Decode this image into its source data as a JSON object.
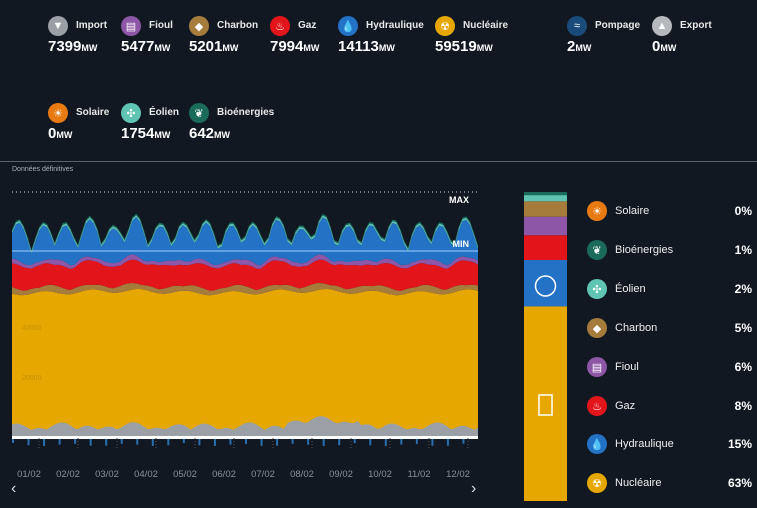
{
  "stats_row1": [
    {
      "key": "import",
      "label": "Import",
      "value": "7399",
      "unit": "MW",
      "color": "#9ba0a6",
      "icon": "import-icon",
      "glyph": "▼"
    },
    {
      "key": "fioul",
      "label": "Fioul",
      "value": "5477",
      "unit": "MW",
      "color": "#8e56a7",
      "icon": "fioul-icon",
      "glyph": "▤"
    },
    {
      "key": "charbon",
      "label": "Charbon",
      "value": "5201",
      "unit": "MW",
      "color": "#a67c3d",
      "icon": "charbon-icon",
      "glyph": "◆"
    },
    {
      "key": "gaz",
      "label": "Gaz",
      "value": "7994",
      "unit": "MW",
      "color": "#e2151b",
      "icon": "gaz-icon",
      "glyph": "♨"
    },
    {
      "key": "hydraulique",
      "label": "Hydraulique",
      "value": "14113",
      "unit": "MW",
      "color": "#2372c6",
      "icon": "hydraulique-icon",
      "glyph": "💧"
    },
    {
      "key": "nucleaire",
      "label": "Nucléaire",
      "value": "59519",
      "unit": "MW",
      "color": "#e6a800",
      "icon": "nucleaire-icon",
      "glyph": "☢"
    },
    {
      "key": "pompage",
      "label": "Pompage",
      "value": "2",
      "unit": "MW",
      "color": "#1a4b7a",
      "icon": "pompage-icon",
      "glyph": "≈"
    },
    {
      "key": "export",
      "label": "Export",
      "value": "0",
      "unit": "MW",
      "color": "#b5b9be",
      "icon": "export-icon",
      "glyph": "▲"
    }
  ],
  "stats_row2": [
    {
      "key": "solaire",
      "label": "Solaire",
      "value": "0",
      "unit": "MW",
      "color": "#e87a12",
      "icon": "solaire-icon",
      "glyph": "☀"
    },
    {
      "key": "eolien",
      "label": "Éolien",
      "value": "1754",
      "unit": "MW",
      "color": "#5fc5b2",
      "icon": "eolien-icon",
      "glyph": "✣"
    },
    {
      "key": "bioenergies",
      "label": "Bioénergies",
      "value": "642",
      "unit": "MW",
      "color": "#1b6b5a",
      "icon": "bioenergies-icon",
      "glyph": "❦"
    }
  ],
  "status_label": "Données définitives",
  "chart_data": {
    "type": "area",
    "x_tick_labels": [
      "01/02",
      "02/02",
      "03/02",
      "04/02",
      "05/02",
      "06/02",
      "07/02",
      "08/02",
      "09/02",
      "10/02",
      "11/02",
      "12/02"
    ],
    "y_tick_labels": [
      "60000",
      "40000",
      "20000"
    ],
    "markers": {
      "max_label": "MAX",
      "min_label": "MIN"
    },
    "series": [
      {
        "name": "Nucléaire",
        "color": "#e6a800"
      },
      {
        "name": "Charbon",
        "color": "#a67c3d"
      },
      {
        "name": "Gaz",
        "color": "#e2151b"
      },
      {
        "name": "Fioul",
        "color": "#8e56a7"
      },
      {
        "name": "Hydraulique",
        "color": "#2372c6"
      },
      {
        "name": "Éolien",
        "color": "#5fc5b2"
      },
      {
        "name": "Bioénergies",
        "color": "#1b6b5a"
      },
      {
        "name": "Import",
        "color": "#9ba0a6"
      }
    ],
    "mix_breakdown": [
      {
        "name": "Solaire",
        "percent": 0,
        "color": "#e87a12",
        "icon": "solaire-icon",
        "glyph": "☀"
      },
      {
        "name": "Bioénergies",
        "percent": 1,
        "color": "#1b6b5a",
        "icon": "bioenergies-icon",
        "glyph": "❦"
      },
      {
        "name": "Éolien",
        "percent": 2,
        "color": "#5fc5b2",
        "icon": "eolien-icon",
        "glyph": "✣"
      },
      {
        "name": "Charbon",
        "percent": 5,
        "color": "#a67c3d",
        "icon": "charbon-icon",
        "glyph": "◆"
      },
      {
        "name": "Fioul",
        "percent": 6,
        "color": "#8e56a7",
        "icon": "fioul-icon",
        "glyph": "▤"
      },
      {
        "name": "Gaz",
        "percent": 8,
        "color": "#e2151b",
        "icon": "gaz-icon",
        "glyph": "♨"
      },
      {
        "name": "Hydraulique",
        "percent": 15,
        "color": "#2372c6",
        "icon": "hydraulique-icon",
        "glyph": "💧"
      },
      {
        "name": "Nucléaire",
        "percent": 63,
        "color": "#e6a800",
        "icon": "nucleaire-icon",
        "glyph": "☢"
      }
    ]
  },
  "nav": {
    "prev": "‹",
    "next": "›"
  }
}
